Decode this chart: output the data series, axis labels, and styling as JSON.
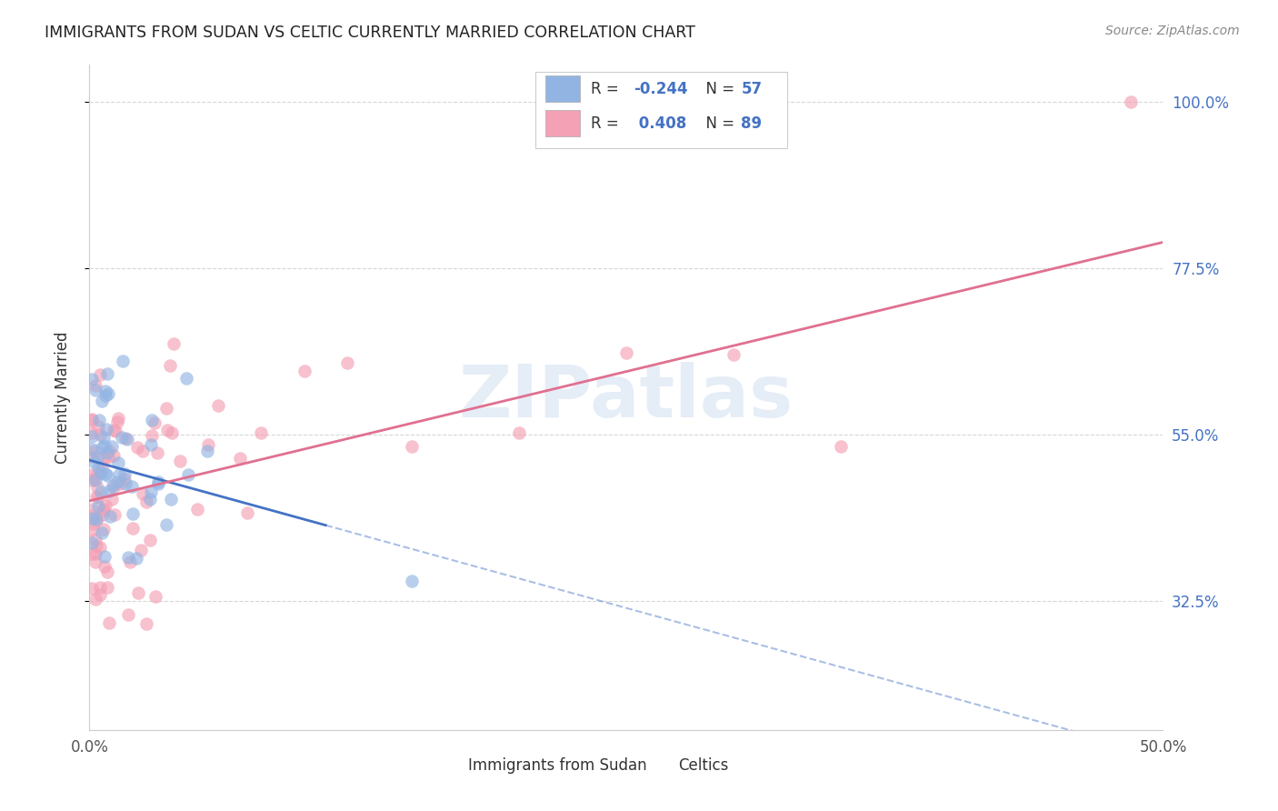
{
  "title": "IMMIGRANTS FROM SUDAN VS CELTIC CURRENTLY MARRIED CORRELATION CHART",
  "source": "Source: ZipAtlas.com",
  "ylabel": "Currently Married",
  "legend_label1": "Immigrants from Sudan",
  "legend_label2": "Celtics",
  "watermark": "ZIPatlas",
  "ytick_labels": [
    "100.0%",
    "77.5%",
    "55.0%",
    "32.5%"
  ],
  "ytick_values": [
    1.0,
    0.775,
    0.55,
    0.325
  ],
  "xlim": [
    0.0,
    0.5
  ],
  "ylim": [
    0.15,
    1.05
  ],
  "color_blue": "#92b4e3",
  "color_pink": "#f4a0b5",
  "color_blue_line": "#4472c4",
  "color_pink_line": "#e07090",
  "background": "#ffffff",
  "grid_color": "#cccccc",
  "sudan_slope": -0.8,
  "sudan_intercept": 0.515,
  "celtics_slope": 0.7,
  "celtics_intercept": 0.46
}
